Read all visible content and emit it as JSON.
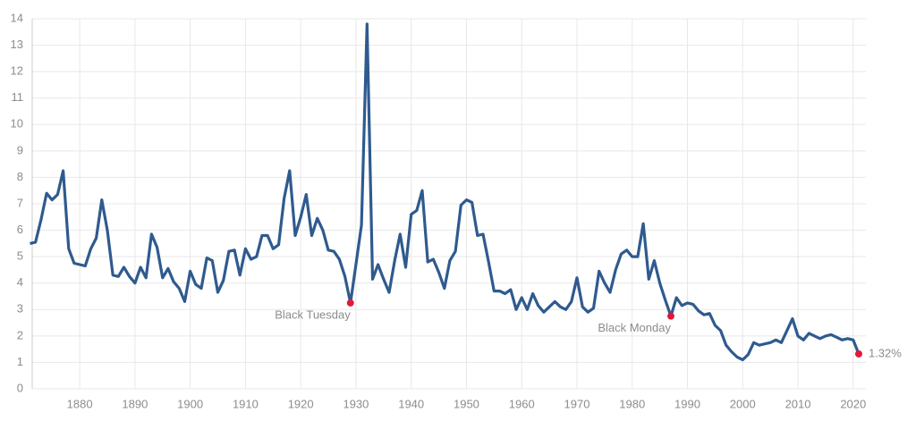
{
  "chart_data": {
    "type": "line",
    "x": [
      1871,
      1872,
      1873,
      1874,
      1875,
      1876,
      1877,
      1878,
      1879,
      1880,
      1881,
      1882,
      1883,
      1884,
      1885,
      1886,
      1887,
      1888,
      1889,
      1890,
      1891,
      1892,
      1893,
      1894,
      1895,
      1896,
      1897,
      1898,
      1899,
      1900,
      1901,
      1902,
      1903,
      1904,
      1905,
      1906,
      1907,
      1908,
      1909,
      1910,
      1911,
      1912,
      1913,
      1914,
      1915,
      1916,
      1917,
      1918,
      1919,
      1920,
      1921,
      1922,
      1923,
      1924,
      1925,
      1926,
      1927,
      1928,
      1929,
      1930,
      1931,
      1932,
      1933,
      1934,
      1935,
      1936,
      1937,
      1938,
      1939,
      1940,
      1941,
      1942,
      1943,
      1944,
      1945,
      1946,
      1947,
      1948,
      1949,
      1950,
      1951,
      1952,
      1953,
      1954,
      1955,
      1956,
      1957,
      1958,
      1959,
      1960,
      1961,
      1962,
      1963,
      1964,
      1965,
      1966,
      1967,
      1968,
      1969,
      1970,
      1971,
      1972,
      1973,
      1974,
      1975,
      1976,
      1977,
      1978,
      1979,
      1980,
      1981,
      1982,
      1983,
      1984,
      1985,
      1986,
      1987,
      1988,
      1989,
      1990,
      1991,
      1992,
      1993,
      1994,
      1995,
      1996,
      1997,
      1998,
      1999,
      2000,
      2001,
      2002,
      2003,
      2004,
      2005,
      2006,
      2007,
      2008,
      2009,
      2010,
      2011,
      2012,
      2013,
      2014,
      2015,
      2016,
      2017,
      2018,
      2019,
      2020,
      2021
    ],
    "series": [
      {
        "color": "#2f5a8f",
        "values": [
          5.5,
          5.55,
          6.4,
          7.4,
          7.15,
          7.35,
          8.25,
          5.3,
          4.75,
          4.7,
          4.65,
          5.3,
          5.7,
          7.15,
          6.0,
          4.3,
          4.25,
          4.6,
          4.25,
          4.0,
          4.6,
          4.2,
          5.85,
          5.35,
          4.2,
          4.55,
          4.05,
          3.8,
          3.3,
          4.45,
          3.95,
          3.8,
          4.95,
          4.85,
          3.65,
          4.1,
          5.2,
          5.25,
          4.3,
          5.3,
          4.9,
          5.0,
          5.8,
          5.8,
          5.3,
          5.45,
          7.2,
          8.25,
          5.8,
          6.5,
          7.35,
          5.8,
          6.45,
          6.0,
          5.25,
          5.2,
          4.9,
          4.25,
          3.25,
          4.7,
          6.2,
          13.8,
          4.15,
          4.7,
          4.15,
          3.65,
          4.85,
          5.85,
          4.6,
          6.6,
          6.75,
          7.5,
          4.8,
          4.9,
          4.4,
          3.8,
          4.85,
          5.2,
          6.95,
          7.15,
          7.05,
          5.8,
          5.85,
          4.8,
          3.7,
          3.7,
          3.6,
          3.75,
          3.0,
          3.45,
          3.0,
          3.6,
          3.15,
          2.9,
          3.1,
          3.3,
          3.1,
          3.0,
          3.3,
          4.2,
          3.1,
          2.9,
          3.05,
          4.45,
          4.0,
          3.65,
          4.5,
          5.1,
          5.25,
          5.0,
          5.0,
          6.25,
          4.15,
          4.85,
          4.0,
          3.35,
          2.75,
          3.45,
          3.15,
          3.25,
          3.2,
          2.95,
          2.8,
          2.85,
          2.4,
          2.2,
          1.65,
          1.4,
          1.2,
          1.1,
          1.3,
          1.75,
          1.65,
          1.7,
          1.75,
          1.85,
          1.75,
          2.2,
          2.65,
          2.0,
          1.85,
          2.1,
          2.0,
          1.9,
          2.0,
          2.05,
          1.95,
          1.85,
          1.9,
          1.85,
          1.32
        ]
      }
    ],
    "highlights": [
      {
        "label": "Black Tuesday",
        "index": 58
      },
      {
        "label": "Black Monday",
        "index": 116
      },
      {
        "label": "1.32%",
        "index": 150
      }
    ],
    "highlight_color": "#e0193a",
    "xlim": [
      1871.4,
      2022.3
    ],
    "xticks": [
      1880,
      1890,
      1900,
      1910,
      1920,
      1930,
      1940,
      1950,
      1960,
      1970,
      1980,
      1990,
      2000,
      2010,
      2020
    ],
    "ylim": [
      0,
      14
    ],
    "yticks": [
      0,
      1,
      2,
      3,
      4,
      5,
      6,
      7,
      8,
      9,
      10,
      11,
      12,
      13,
      14
    ],
    "grid": true
  }
}
